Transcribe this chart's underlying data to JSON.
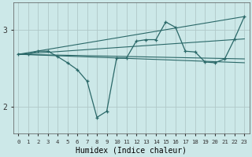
{
  "title": "",
  "xlabel": "Humidex (Indice chaleur)",
  "ylabel": "",
  "bg_color": "#cce8e8",
  "grid_color": "#b0c8c8",
  "line_color": "#2a6868",
  "xlim": [
    -0.5,
    23.5
  ],
  "ylim": [
    1.65,
    3.35
  ],
  "yticks": [
    2,
    3
  ],
  "xticks": [
    0,
    1,
    2,
    3,
    4,
    5,
    6,
    7,
    8,
    9,
    10,
    11,
    12,
    13,
    14,
    15,
    16,
    17,
    18,
    19,
    20,
    21,
    22,
    23
  ],
  "main_x": [
    0,
    1,
    2,
    3,
    4,
    5,
    6,
    7,
    8,
    9,
    10,
    11,
    12,
    13,
    14,
    15,
    16,
    17,
    18,
    19,
    20,
    21,
    22,
    23
  ],
  "main_y": [
    2.68,
    2.68,
    2.72,
    2.72,
    2.65,
    2.57,
    2.48,
    2.33,
    1.86,
    1.94,
    2.63,
    2.63,
    2.85,
    2.87,
    2.87,
    3.1,
    3.03,
    2.72,
    2.71,
    2.58,
    2.57,
    2.62,
    2.88,
    3.17
  ],
  "straight_lines": [
    {
      "x": [
        0,
        23
      ],
      "y": [
        2.68,
        3.17
      ]
    },
    {
      "x": [
        0,
        23
      ],
      "y": [
        2.68,
        2.88
      ]
    },
    {
      "x": [
        0,
        23
      ],
      "y": [
        2.68,
        2.62
      ]
    },
    {
      "x": [
        0,
        23
      ],
      "y": [
        2.68,
        2.57
      ]
    }
  ]
}
